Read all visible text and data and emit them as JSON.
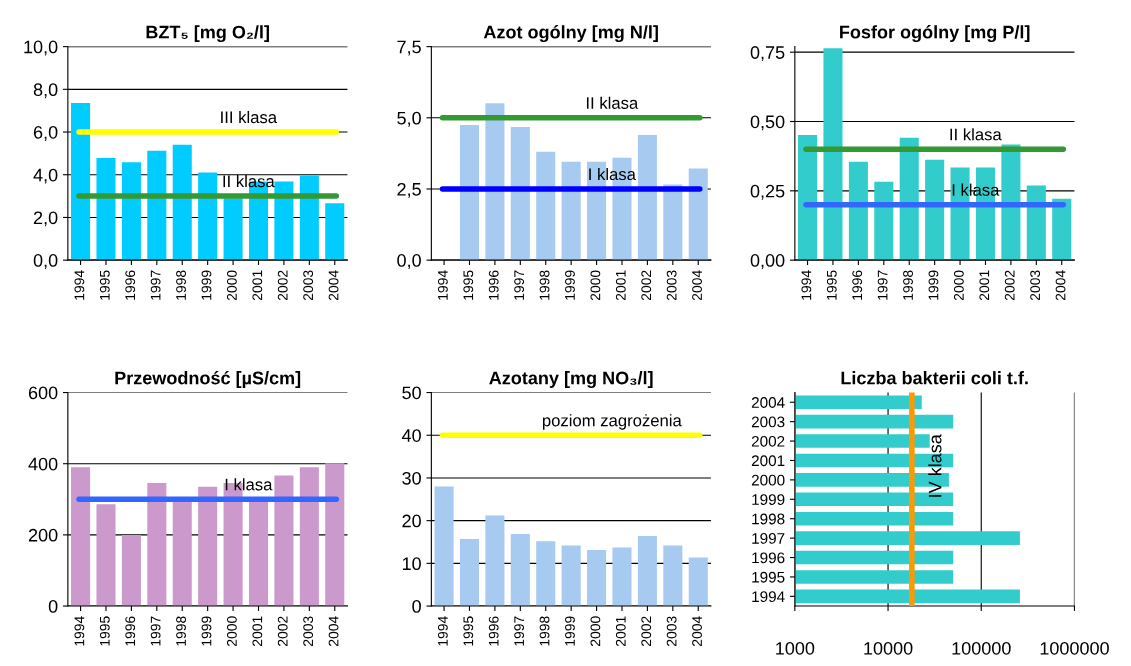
{
  "chart_data": [
    {
      "type": "bar",
      "title": "BZT₅ [mg O₂/l]",
      "categories": [
        "1994",
        "1995",
        "1996",
        "1997",
        "1998",
        "1999",
        "2000",
        "2001",
        "2002",
        "2003",
        "2004"
      ],
      "values": [
        7.36,
        4.78,
        4.59,
        5.12,
        5.41,
        4.11,
        2.9,
        3.68,
        3.68,
        3.97,
        2.67
      ],
      "color": "#00ccff",
      "ylim": [
        0,
        10
      ],
      "yticks": [
        {
          "value": 0,
          "label": "0,0"
        },
        {
          "value": 2,
          "label": "2,0"
        },
        {
          "value": 4,
          "label": "4,0"
        },
        {
          "value": 6,
          "label": "6,0"
        },
        {
          "value": 8,
          "label": "8,0"
        },
        {
          "value": 10,
          "label": "10,0"
        }
      ],
      "grid": "y",
      "ref_lines": [
        {
          "axis": "y",
          "value": 6,
          "label": "III klasa",
          "color": "#ffff00"
        },
        {
          "axis": "y",
          "value": 3,
          "label": "II klasa",
          "color": "#339933"
        }
      ]
    },
    {
      "type": "bar",
      "title": "Azot ogólny [mg N/l]",
      "categories": [
        "1994",
        "1995",
        "1996",
        "1997",
        "1998",
        "1999",
        "2000",
        "2001",
        "2002",
        "2003",
        "2004"
      ],
      "values": [
        null,
        4.75,
        5.51,
        4.68,
        3.81,
        3.46,
        3.46,
        3.6,
        4.4,
        2.66,
        3.22
      ],
      "color": "#a6caf0",
      "ylim": [
        0,
        7.5
      ],
      "yticks": [
        {
          "value": 0,
          "label": "0,0"
        },
        {
          "value": 2.5,
          "label": "2,5"
        },
        {
          "value": 5,
          "label": "5,0"
        },
        {
          "value": 7.5,
          "label": "7,5"
        }
      ],
      "grid": "y",
      "ref_lines": [
        {
          "axis": "y",
          "value": 5,
          "label": "II klasa",
          "color": "#339933"
        },
        {
          "axis": "y",
          "value": 2.5,
          "label": "I klasa",
          "color": "#0000ff"
        }
      ]
    },
    {
      "type": "bar",
      "title": "Fosfor ogólny [mg P/l]",
      "categories": [
        "1994",
        "1995",
        "1996",
        "1997",
        "1998",
        "1999",
        "2000",
        "2001",
        "2002",
        "2003",
        "2004"
      ],
      "values": [
        0.451,
        0.764,
        0.355,
        0.283,
        0.441,
        0.362,
        0.334,
        0.334,
        0.417,
        0.269,
        0.221
      ],
      "color": "#33cccc",
      "ylim": [
        0,
        0.77
      ],
      "yticks": [
        {
          "value": 0,
          "label": "0,00"
        },
        {
          "value": 0.25,
          "label": "0,25"
        },
        {
          "value": 0.5,
          "label": "0,50"
        },
        {
          "value": 0.75,
          "label": "0,75"
        }
      ],
      "grid": "y",
      "ref_lines": [
        {
          "axis": "y",
          "value": 0.4,
          "label": "II klasa",
          "color": "#339933"
        },
        {
          "axis": "y",
          "value": 0.2,
          "label": "I klasa",
          "color": "#3366ff"
        }
      ]
    },
    {
      "type": "bar",
      "title": "Przewodność [µS/cm]",
      "categories": [
        "1994",
        "1995",
        "1996",
        "1997",
        "1998",
        "1999",
        "2000",
        "2001",
        "2002",
        "2003",
        "2004"
      ],
      "values": [
        390,
        286,
        200,
        346,
        298,
        335,
        346,
        295,
        367,
        390,
        401
      ],
      "color": "#cc99cc",
      "ylim": [
        0,
        600
      ],
      "yticks": [
        0,
        200,
        400,
        600
      ],
      "grid": "y",
      "ref_lines": [
        {
          "axis": "y",
          "value": 300,
          "label": "I klasa",
          "color": "#3366ff"
        }
      ]
    },
    {
      "type": "bar",
      "title": "Azotany [mg NO₃/l]",
      "categories": [
        "1994",
        "1995",
        "1996",
        "1997",
        "1998",
        "1999",
        "2000",
        "2001",
        "2002",
        "2003",
        "2004"
      ],
      "values": [
        28.0,
        15.7,
        21.2,
        16.9,
        15.2,
        14.2,
        13.1,
        13.7,
        16.4,
        14.2,
        11.4
      ],
      "color": "#a6caf0",
      "ylim": [
        0,
        50
      ],
      "yticks": [
        0,
        10,
        20,
        30,
        40,
        50
      ],
      "grid": "y",
      "ref_lines": [
        {
          "axis": "y",
          "value": 40,
          "label": "poziom zagrożenia",
          "color": "#ffff00"
        }
      ]
    },
    {
      "type": "bar",
      "orientation": "horizontal",
      "log": "x",
      "title": "Liczba bakterii coli t.f.",
      "categories": [
        "2004",
        "2003",
        "2002",
        "2001",
        "2000",
        "1999",
        "1998",
        "1997",
        "1996",
        "1995",
        "1994"
      ],
      "values": [
        23000,
        50000,
        28000,
        50000,
        45000,
        50000,
        50000,
        260000,
        50000,
        50000,
        260000
      ],
      "color": "#33cccc",
      "xlim": [
        1000,
        1000000
      ],
      "xticks": [
        1000,
        10000,
        100000,
        1000000
      ],
      "grid": "x",
      "ref_lines": [
        {
          "axis": "x",
          "value": 18000,
          "label": "IV klasa",
          "color": "#ff9900"
        }
      ]
    }
  ]
}
